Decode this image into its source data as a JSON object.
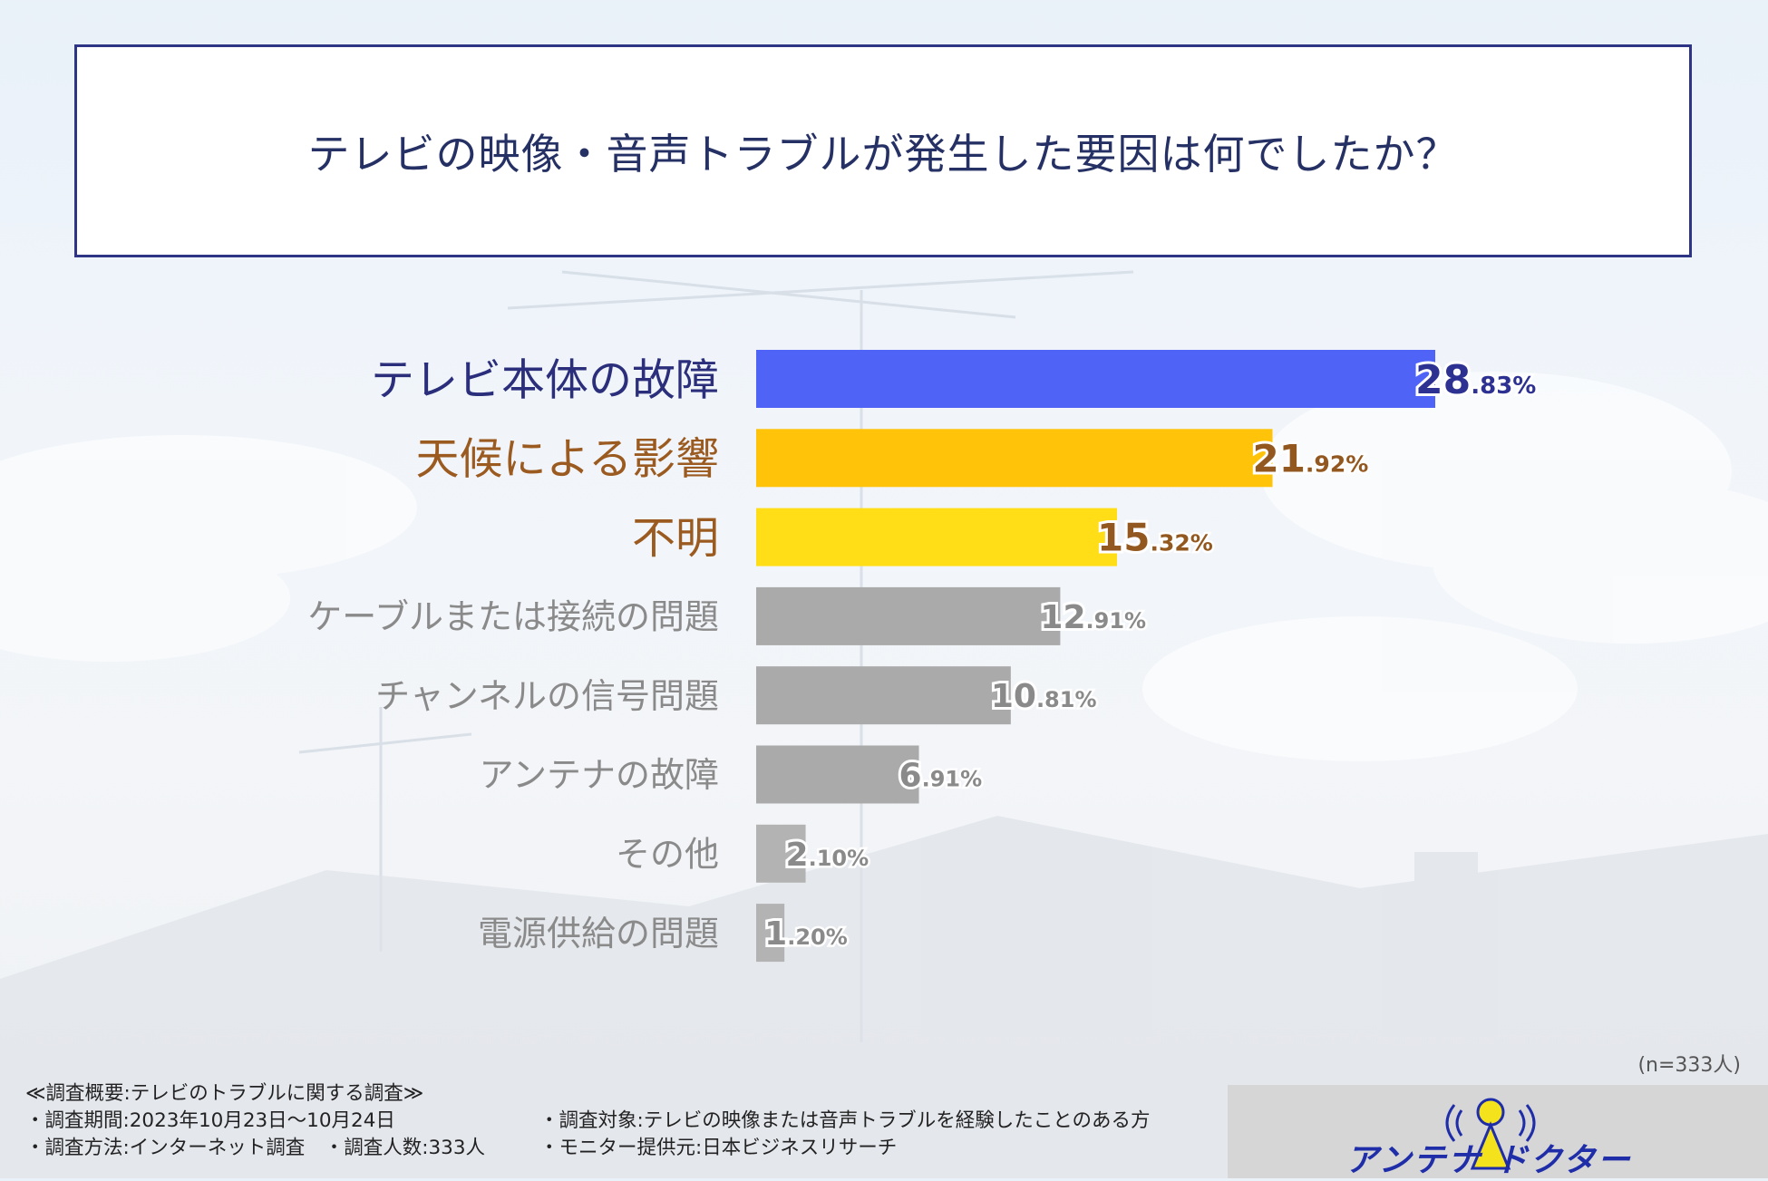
{
  "title": "テレビの映像・音声トラブルが発生した要因は何でしたか？",
  "chart_data": {
    "type": "bar",
    "orientation": "horizontal",
    "title": "テレビの映像・音声トラブルが発生した要因は何でしたか？",
    "categories": [
      "テレビ本体の故障",
      "天候による影響",
      "不明",
      "ケーブルまたは接続の問題",
      "チャンネルの信号問題",
      "アンテナの故障",
      "その他",
      "電源供給の問題"
    ],
    "values": [
      28.83,
      21.92,
      15.32,
      12.91,
      10.81,
      6.91,
      2.1,
      1.2
    ],
    "value_labels_int": [
      "28",
      "21",
      "15",
      "12",
      "10",
      "6",
      "2",
      "1"
    ],
    "value_labels_dec": [
      ".83%",
      ".92%",
      ".32%",
      ".91%",
      ".81%",
      ".91%",
      ".10%",
      ".20%"
    ],
    "colors": [
      "#4f63f7",
      "#ffc409",
      "#ffde17",
      "#aaaaaa",
      "#aaaaaa",
      "#aaaaaa",
      "#b3b3b3",
      "#b3b3b3"
    ],
    "label_colors": [
      "#2a2e7b",
      "#9b5a1f",
      "#9b5a1f",
      "#8a8a8a",
      "#8a8a8a",
      "#8a8a8a",
      "#8a8a8a",
      "#8a8a8a"
    ],
    "value_colors": [
      "#2d3191",
      "#93581f",
      "#93581f",
      "#8a8a8a",
      "#8a8a8a",
      "#8a8a8a",
      "#8a8a8a",
      "#8a8a8a"
    ],
    "xlim": [
      0,
      28.83
    ],
    "xlabel": "",
    "ylabel": ""
  },
  "sample_note": "(n=333人)",
  "survey": {
    "heading": "≪調査概要:テレビのトラブルに関する調査≫",
    "period": "・調査期間:2023年10月23日〜10月24日",
    "method": "・調査方法:インターネット調査　・調査人数:333人",
    "target": "・調査対象:テレビの映像または音声トラブルを経験したことのある方",
    "provider": "・モニター提供元:日本ビジネスリサーチ"
  },
  "logo": {
    "text": "アンテナ ドクター"
  }
}
